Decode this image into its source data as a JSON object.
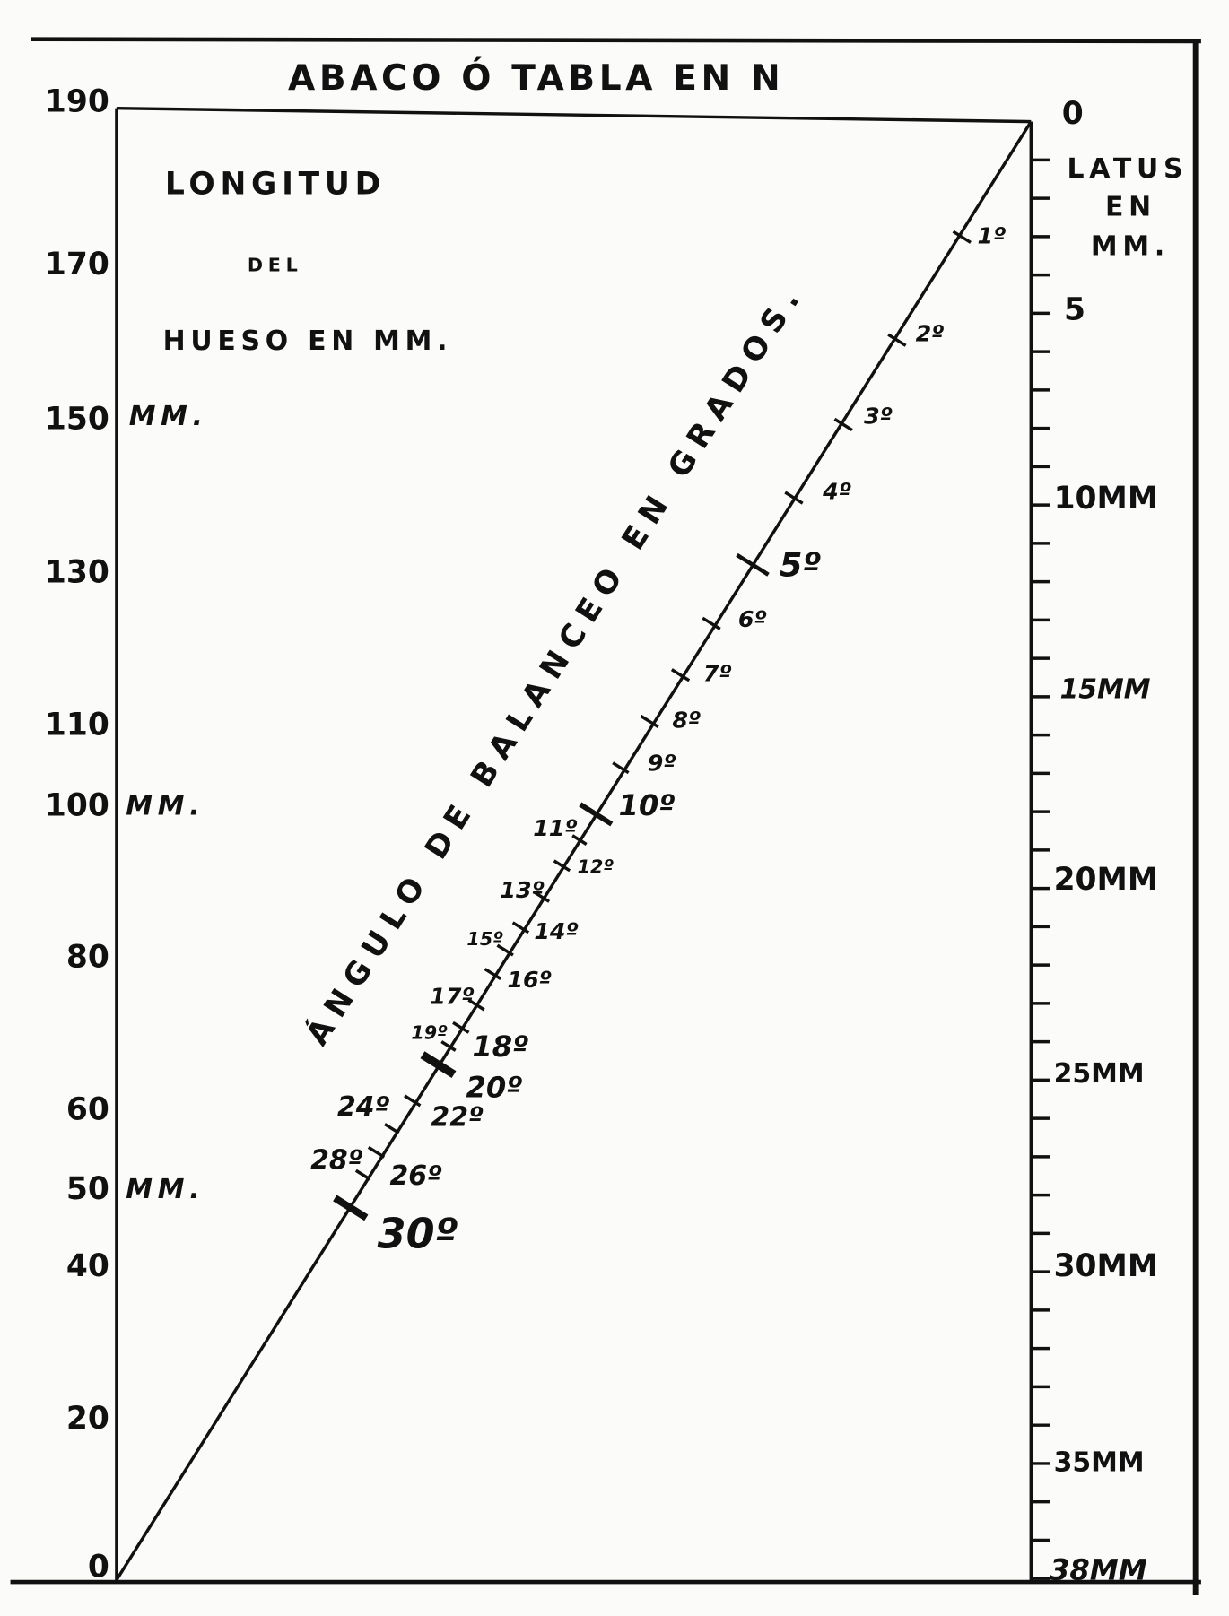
{
  "title": "ABACO Ó TABLA EN N",
  "left_axis": {
    "notes": [
      "LONGITUD",
      "DEL",
      "HUESO EN MM.",
      "MM.",
      "MM.",
      "MM."
    ],
    "labels": [
      "190",
      "170",
      "150",
      "130",
      "110",
      "100",
      "80",
      "60",
      "50",
      "40",
      "20",
      "0"
    ]
  },
  "right_axis": {
    "title": [
      "LATUS",
      "EN",
      "MM."
    ],
    "labels": [
      "0",
      "5",
      "10MM",
      "15MM",
      "20MM",
      "25MM",
      "30MM",
      "35MM",
      "38MM"
    ]
  },
  "diagonal": {
    "label": "ÁNGULO DE BALANCEO EN GRADOS.",
    "degree_labels": [
      "1º",
      "2º",
      "3º",
      "4º",
      "5º",
      "6º",
      "7º",
      "8º",
      "9º",
      "10º",
      "11º",
      "12º",
      "13º",
      "14º",
      "15º",
      "16º",
      "17º",
      "18º",
      "19º",
      "20º",
      "22º",
      "24º",
      "26º",
      "28º",
      "30º"
    ]
  }
}
